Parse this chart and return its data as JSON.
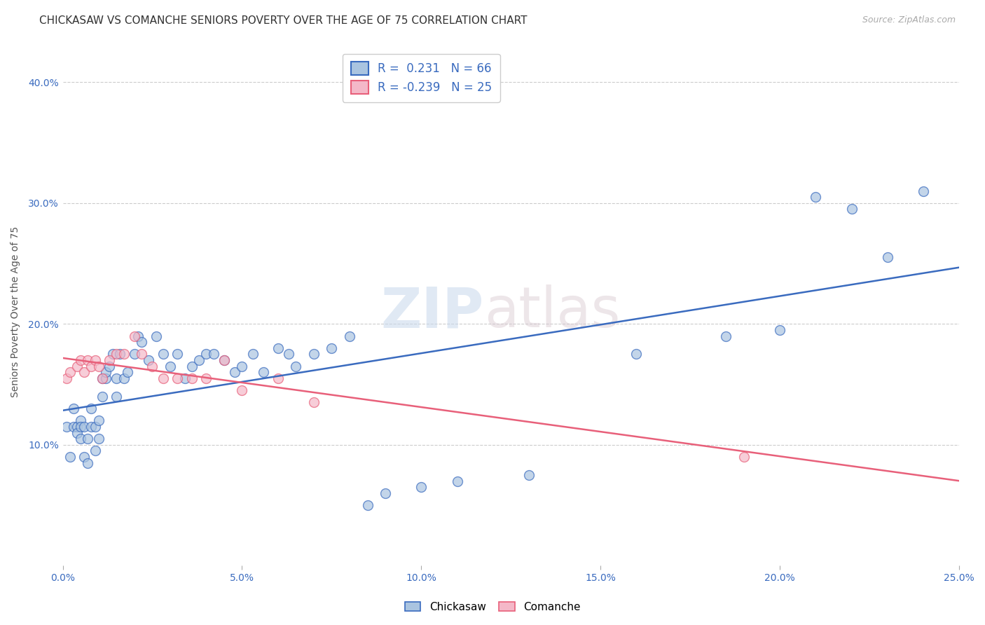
{
  "title": "CHICKASAW VS COMANCHE SENIORS POVERTY OVER THE AGE OF 75 CORRELATION CHART",
  "source": "Source: ZipAtlas.com",
  "ylabel": "Seniors Poverty Over the Age of 75",
  "xlim": [
    0.0,
    0.25
  ],
  "ylim": [
    0.0,
    0.42
  ],
  "xtick_labels": [
    "0.0%",
    "5.0%",
    "10.0%",
    "15.0%",
    "20.0%",
    "25.0%"
  ],
  "xtick_vals": [
    0.0,
    0.05,
    0.1,
    0.15,
    0.2,
    0.25
  ],
  "ytick_labels": [
    "10.0%",
    "20.0%",
    "30.0%",
    "40.0%"
  ],
  "ytick_vals": [
    0.1,
    0.2,
    0.3,
    0.4
  ],
  "chickasaw_color": "#aac4e0",
  "comanche_color": "#f4b8c8",
  "chickasaw_line_color": "#3a6bbf",
  "comanche_line_color": "#e8607a",
  "R_chickasaw": 0.231,
  "N_chickasaw": 66,
  "R_comanche": -0.239,
  "N_comanche": 25,
  "chickasaw_x": [
    0.001,
    0.002,
    0.003,
    0.003,
    0.004,
    0.004,
    0.005,
    0.005,
    0.005,
    0.006,
    0.006,
    0.007,
    0.007,
    0.008,
    0.008,
    0.009,
    0.009,
    0.01,
    0.01,
    0.011,
    0.011,
    0.012,
    0.012,
    0.013,
    0.014,
    0.015,
    0.015,
    0.016,
    0.017,
    0.018,
    0.02,
    0.021,
    0.022,
    0.024,
    0.026,
    0.028,
    0.03,
    0.032,
    0.034,
    0.036,
    0.038,
    0.04,
    0.042,
    0.045,
    0.048,
    0.05,
    0.053,
    0.056,
    0.06,
    0.063,
    0.065,
    0.07,
    0.075,
    0.08,
    0.085,
    0.09,
    0.1,
    0.11,
    0.13,
    0.16,
    0.185,
    0.2,
    0.21,
    0.22,
    0.23,
    0.24
  ],
  "chickasaw_y": [
    0.115,
    0.09,
    0.13,
    0.115,
    0.115,
    0.11,
    0.12,
    0.115,
    0.105,
    0.115,
    0.09,
    0.085,
    0.105,
    0.13,
    0.115,
    0.115,
    0.095,
    0.12,
    0.105,
    0.14,
    0.155,
    0.155,
    0.16,
    0.165,
    0.175,
    0.155,
    0.14,
    0.175,
    0.155,
    0.16,
    0.175,
    0.19,
    0.185,
    0.17,
    0.19,
    0.175,
    0.165,
    0.175,
    0.155,
    0.165,
    0.17,
    0.175,
    0.175,
    0.17,
    0.16,
    0.165,
    0.175,
    0.16,
    0.18,
    0.175,
    0.165,
    0.175,
    0.18,
    0.19,
    0.05,
    0.06,
    0.065,
    0.07,
    0.075,
    0.175,
    0.19,
    0.195,
    0.305,
    0.295,
    0.255,
    0.31
  ],
  "comanche_x": [
    0.001,
    0.002,
    0.004,
    0.005,
    0.006,
    0.007,
    0.008,
    0.009,
    0.01,
    0.011,
    0.013,
    0.015,
    0.017,
    0.02,
    0.022,
    0.025,
    0.028,
    0.032,
    0.036,
    0.04,
    0.045,
    0.05,
    0.06,
    0.07,
    0.19
  ],
  "comanche_y": [
    0.155,
    0.16,
    0.165,
    0.17,
    0.16,
    0.17,
    0.165,
    0.17,
    0.165,
    0.155,
    0.17,
    0.175,
    0.175,
    0.19,
    0.175,
    0.165,
    0.155,
    0.155,
    0.155,
    0.155,
    0.17,
    0.145,
    0.155,
    0.135,
    0.09
  ],
  "watermark_zip": "ZIP",
  "watermark_atlas": "atlas",
  "title_fontsize": 11,
  "axis_fontsize": 10,
  "tick_fontsize": 10,
  "marker_size": 100,
  "line_width": 1.8,
  "grid_color": "#cccccc",
  "grid_linestyle": "--",
  "background_color": "#ffffff"
}
